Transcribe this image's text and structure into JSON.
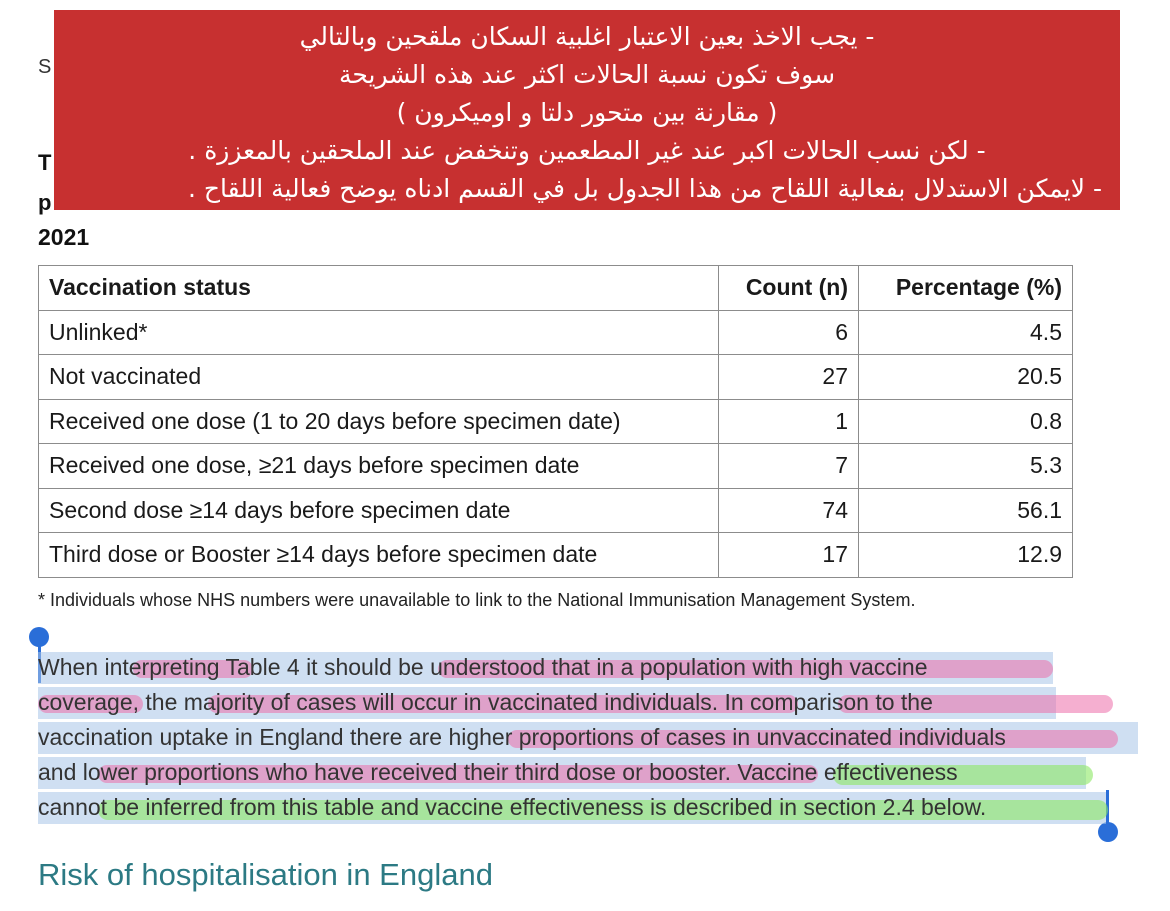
{
  "background_fragments": {
    "s_letter": "S",
    "t_letter": "T",
    "p_letter": "p",
    "year": "2021"
  },
  "banner": {
    "bg_color": "#c73030",
    "lines": [
      "- يجب الاخذ بعين الاعتبار اغلبية السكان ملقحين وبالتالي",
      "سوف تكون نسبة الحالات اكثر عند هذه الشريحة",
      "( مقارنة بين متحور دلتا و اوميكرون )",
      "- لكن نسب الحالات اكبر عند غير المطعمين وتنخفض عند الملحقين بالمعززة .",
      "- لايمكن الاستدلال بفعالية اللقاح من هذا الجدول بل في القسم ادناه يوضح فعالية اللقاح ."
    ]
  },
  "table": {
    "headers": [
      "Vaccination status",
      "Count (n)",
      "Percentage (%)"
    ],
    "rows": [
      [
        "Unlinked*",
        "6",
        "4.5"
      ],
      [
        "Not vaccinated",
        "27",
        "20.5"
      ],
      [
        "Received one dose (1 to 20 days before specimen date)",
        "1",
        "0.8"
      ],
      [
        "Received one dose, ≥21 days before specimen date",
        "7",
        "5.3"
      ],
      [
        "Second dose ≥14 days before specimen date",
        "74",
        "56.1"
      ],
      [
        "Third dose or Booster ≥14 days before specimen date",
        "17",
        "12.9"
      ]
    ]
  },
  "footnote": "* Individuals whose NHS numbers were unavailable to link to the National Immunisation Management System.",
  "paragraph": {
    "lines": [
      "When interpreting Table 4 it should be understood that in a population with high vaccine",
      "coverage, the majority of cases will occur in vaccinated individuals. In comparison to the",
      "vaccination uptake in England there are higher proportions of cases in unvaccinated individuals",
      "and lower proportions who have received their third dose or booster. Vaccine effectiveness",
      "cannot be inferred from this table and vaccine effectiveness is described in section 2.4 below."
    ],
    "selection_color": "#a8c4e8",
    "highlight_pink": "#ec6eaa",
    "highlight_green": "#8ce864",
    "handle_color": "#2a6ed8"
  },
  "section_heading": "Risk of hospitalisation in England",
  "heading_color": "#2c7a84"
}
